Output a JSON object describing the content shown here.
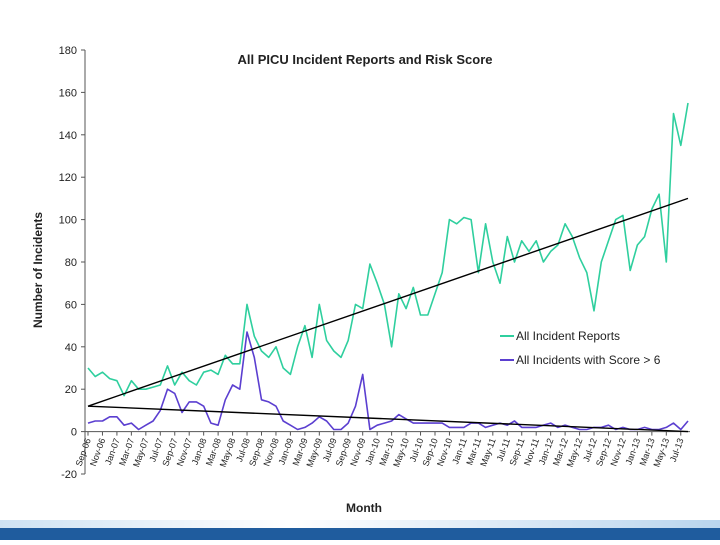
{
  "colors": {
    "series_all": "#2fcf9e",
    "series_high": "#5b3fd0",
    "trend": "#000000",
    "footer": "#1f5c9e"
  },
  "chart_data": {
    "type": "line",
    "title": "All PICU Incident Reports and Risk Score",
    "xlabel": "Month",
    "ylabel": "Number of Incidents",
    "ylim": [
      -20,
      180
    ],
    "yticks": [
      -20,
      0,
      20,
      40,
      60,
      80,
      100,
      120,
      140,
      160,
      180
    ],
    "xlim": [
      "Sep-06",
      "Jul-13"
    ],
    "grid": false,
    "legend_position": "lower-right",
    "tick_labels": [
      "Sep-06",
      "Nov-06",
      "Jan-07",
      "Mar-07",
      "May-07",
      "Jul-07",
      "Sep-07",
      "Nov-07",
      "Jan-08",
      "Mar-08",
      "May-08",
      "Jul-08",
      "Sep-08",
      "Nov-08",
      "Jan-09",
      "Mar-09",
      "May-09",
      "Jul-09",
      "Sep-09",
      "Nov-09",
      "Jan-10",
      "Mar-10",
      "May-10",
      "Jul-10",
      "Sep-10",
      "Nov-10",
      "Jan-11",
      "Mar-11",
      "May-11",
      "Jul-11",
      "Sep-11",
      "Nov-11",
      "Jan-12",
      "Mar-12",
      "May-12",
      "Jul-12",
      "Sep-12",
      "Nov-12",
      "Jan-13",
      "Mar-13",
      "May-13",
      "Jul-13"
    ],
    "series": [
      {
        "name": "All Incident Reports",
        "color": "#2fcf9e",
        "values": [
          30,
          26,
          28,
          25,
          24,
          17,
          24,
          20,
          20,
          21,
          22,
          31,
          22,
          28,
          24,
          22,
          28,
          29,
          27,
          36,
          32,
          32,
          60,
          45,
          38,
          35,
          40,
          30,
          27,
          40,
          50,
          35,
          60,
          43,
          38,
          35,
          43,
          60,
          58,
          79,
          70,
          60,
          40,
          65,
          58,
          68,
          55,
          55,
          65,
          75,
          100,
          98,
          101,
          100,
          75,
          98,
          80,
          70,
          92,
          80,
          90,
          85,
          90,
          80,
          85,
          88,
          98,
          92,
          82,
          75,
          57,
          80,
          90,
          100,
          102,
          76,
          88,
          92,
          105,
          112,
          80,
          150,
          135,
          155
        ]
      },
      {
        "name": "All Incidents with Score > 6",
        "color": "#5b3fd0",
        "values": [
          4,
          5,
          5,
          7,
          7,
          3,
          4,
          1,
          3,
          5,
          10,
          20,
          18,
          9,
          14,
          14,
          12,
          4,
          3,
          15,
          22,
          20,
          47,
          35,
          15,
          14,
          12,
          5,
          3,
          1,
          2,
          4,
          7,
          5,
          1,
          1,
          4,
          12,
          27,
          1,
          3,
          4,
          5,
          8,
          6,
          4,
          4,
          4,
          4,
          4,
          2,
          2,
          2,
          4,
          4,
          2,
          3,
          4,
          3,
          5,
          2,
          2,
          2,
          3,
          4,
          2,
          3,
          2,
          1,
          1,
          2,
          2,
          3,
          1,
          2,
          1,
          1,
          2,
          1,
          1,
          2,
          4,
          1,
          5
        ]
      }
    ],
    "trendlines": [
      {
        "for": "All Incident Reports",
        "start": 12,
        "end": 110
      },
      {
        "for": "All Incidents with Score > 6",
        "start": 12,
        "end": 0
      }
    ]
  }
}
